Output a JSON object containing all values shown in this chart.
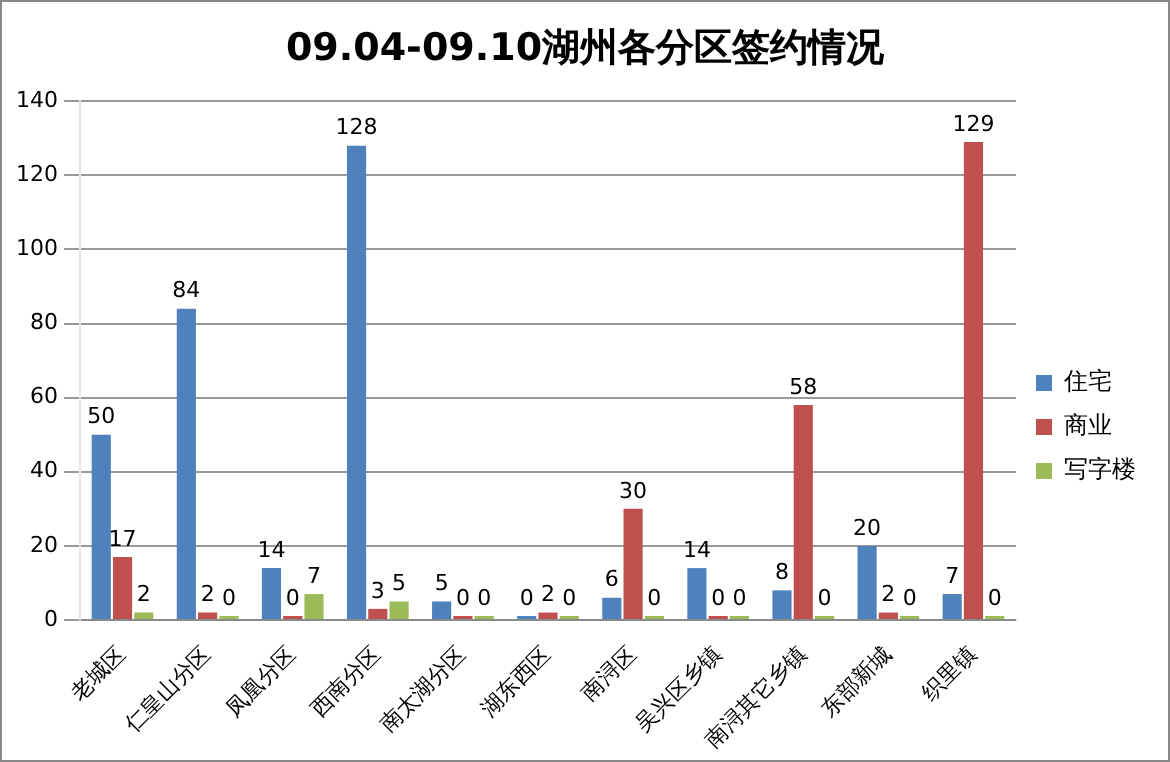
{
  "chart_data": {
    "type": "bar",
    "title": "09.04-09.10湖州各分区签约情况",
    "categories": [
      "老城区",
      "仁皇山分区",
      "凤凰分区",
      "西南分区",
      "南太湖分区",
      "湖东西区",
      "南浔区",
      "吴兴区乡镇",
      "南浔其它乡镇",
      "东部新城",
      "织里镇"
    ],
    "series": [
      {
        "name": "住宅",
        "color": "#4f81bd",
        "values": [
          50,
          84,
          14,
          128,
          5,
          0,
          6,
          14,
          8,
          20,
          7
        ]
      },
      {
        "name": "商业",
        "color": "#c0504d",
        "values": [
          17,
          2,
          0,
          3,
          0,
          2,
          30,
          0,
          58,
          2,
          129
        ]
      },
      {
        "name": "写字楼",
        "color": "#9bbb59",
        "values": [
          2,
          0,
          7,
          5,
          0,
          0,
          0,
          0,
          0,
          0,
          0
        ]
      }
    ],
    "ylim": [
      0,
      140
    ],
    "yticks": [
      0,
      20,
      40,
      60,
      80,
      100,
      120,
      140
    ],
    "grid": "y",
    "legend": "right",
    "data_labels": true
  }
}
